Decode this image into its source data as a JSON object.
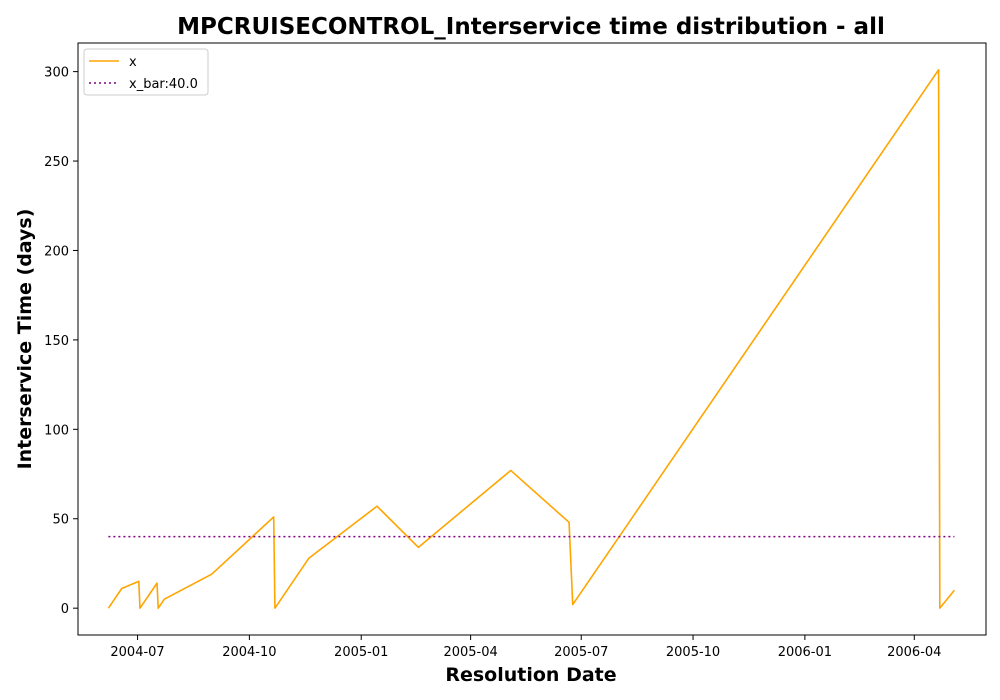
{
  "chart_data": {
    "type": "line",
    "title": "MPCRUISECONTROL_Interservice time distribution - all",
    "xlabel": "Resolution Date",
    "ylabel": "Interservice Time (days)",
    "xlim": [
      "2004-05-13",
      "2006-05-30"
    ],
    "ylim": [
      -15,
      316
    ],
    "x_ticks": [
      "2004-07-01",
      "2004-10-01",
      "2005-01-01",
      "2005-04-01",
      "2005-07-01",
      "2005-10-01",
      "2006-01-01",
      "2006-04-01"
    ],
    "x_tick_labels": [
      "2004-07",
      "2004-10",
      "2005-01",
      "2005-04",
      "2005-07",
      "2005-10",
      "2006-01",
      "2006-04"
    ],
    "y_ticks": [
      0,
      50,
      100,
      150,
      200,
      250,
      300
    ],
    "legend_position": "upper-left",
    "colors": {
      "x": "#FFA500",
      "x_bar": "#800080"
    },
    "series": [
      {
        "name": "x",
        "style": "solid",
        "points": [
          [
            "2004-06-07",
            0
          ],
          [
            "2004-06-18",
            11
          ],
          [
            "2004-07-02",
            15
          ],
          [
            "2004-07-03",
            0
          ],
          [
            "2004-07-17",
            14
          ],
          [
            "2004-07-18",
            0
          ],
          [
            "2004-07-23",
            5
          ],
          [
            "2004-08-31",
            19
          ],
          [
            "2004-10-21",
            51
          ],
          [
            "2004-10-22",
            0
          ],
          [
            "2004-11-19",
            28
          ],
          [
            "2005-01-14",
            57
          ],
          [
            "2005-02-17",
            34
          ],
          [
            "2005-05-04",
            77
          ],
          [
            "2005-06-21",
            48
          ],
          [
            "2005-06-24",
            2
          ],
          [
            "2006-04-21",
            301
          ],
          [
            "2006-04-22",
            0
          ],
          [
            "2006-05-04",
            10
          ]
        ]
      },
      {
        "name": "x_bar:40.0",
        "style": "dotted",
        "points": [
          [
            "2004-06-07",
            40
          ],
          [
            "2006-05-04",
            40
          ]
        ]
      }
    ]
  }
}
